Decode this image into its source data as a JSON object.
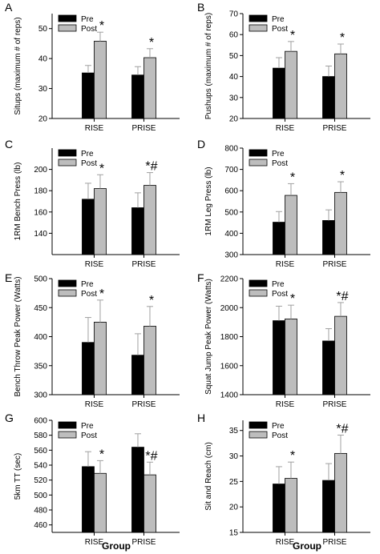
{
  "xlabel": "Group",
  "legend": [
    "Pre",
    "Post"
  ],
  "colors": {
    "pre": "#000000",
    "post": "#bdbdbd",
    "error": "#a0a0a0"
  },
  "chart_data": [
    {
      "panel": "A",
      "type": "bar",
      "ylabel": "Situps (maximum # of reps)",
      "ylim": [
        20,
        55
      ],
      "yticks": [
        20,
        30,
        40,
        50
      ],
      "categories": [
        "RISE",
        "PRISE"
      ],
      "series": [
        {
          "name": "Pre",
          "values": [
            35.2,
            34.5
          ],
          "errors": [
            2.5,
            2.8
          ]
        },
        {
          "name": "Post",
          "values": [
            45.8,
            40.3
          ],
          "errors": [
            3.0,
            3.0
          ]
        }
      ],
      "annotations": [
        "*",
        "*"
      ],
      "legend_position": "top-left",
      "grid": false
    },
    {
      "panel": "B",
      "type": "bar",
      "ylabel": "Pushups (maximum # of reps)",
      "ylim": [
        20,
        70
      ],
      "yticks": [
        20,
        30,
        40,
        50,
        60,
        70
      ],
      "categories": [
        "RISE",
        "PRISE"
      ],
      "series": [
        {
          "name": "Pre",
          "values": [
            44.0,
            40.0
          ],
          "errors": [
            5.0,
            5.0
          ]
        },
        {
          "name": "Post",
          "values": [
            52.0,
            50.8
          ],
          "errors": [
            4.7,
            4.7
          ]
        }
      ],
      "annotations": [
        "*",
        "*"
      ],
      "legend_position": "top-left",
      "grid": false
    },
    {
      "panel": "C",
      "type": "bar",
      "ylabel": "1RM Bench Press (lb)",
      "ylim": [
        120,
        220
      ],
      "yticks": [
        140,
        160,
        180,
        200
      ],
      "categories": [
        "RISE",
        "PRISE"
      ],
      "series": [
        {
          "name": "Pre",
          "values": [
            172,
            164
          ],
          "errors": [
            15,
            14
          ]
        },
        {
          "name": "Post",
          "values": [
            182,
            185
          ],
          "errors": [
            13,
            12
          ]
        }
      ],
      "annotations": [
        "*",
        "*#"
      ],
      "legend_position": "top-left",
      "grid": false
    },
    {
      "panel": "D",
      "type": "bar",
      "ylabel": "1RM Leg Press (lb)",
      "ylim": [
        300,
        800
      ],
      "yticks": [
        300,
        400,
        500,
        600,
        700,
        800
      ],
      "categories": [
        "RISE",
        "PRISE"
      ],
      "series": [
        {
          "name": "Pre",
          "values": [
            452,
            460
          ],
          "errors": [
            50,
            50
          ]
        },
        {
          "name": "Post",
          "values": [
            578,
            592
          ],
          "errors": [
            55,
            50
          ]
        }
      ],
      "annotations": [
        "*",
        "*"
      ],
      "legend_position": "top-left",
      "grid": false
    },
    {
      "panel": "E",
      "type": "bar",
      "ylabel": "Bench Throw Peak Power (Watts)",
      "ylim": [
        300,
        500
      ],
      "yticks": [
        300,
        350,
        400,
        450,
        500
      ],
      "categories": [
        "RISE",
        "PRISE"
      ],
      "series": [
        {
          "name": "Pre",
          "values": [
            390,
            368
          ],
          "errors": [
            43,
            37
          ]
        },
        {
          "name": "Post",
          "values": [
            425,
            418
          ],
          "errors": [
            38,
            34
          ]
        }
      ],
      "annotations": [
        "*",
        "*"
      ],
      "legend_position": "top-left",
      "grid": false
    },
    {
      "panel": "F",
      "type": "bar",
      "ylabel": "Squat Jump Peak Power (Watts)",
      "ylim": [
        1400,
        2200
      ],
      "yticks": [
        1400,
        1600,
        1800,
        2000,
        2200
      ],
      "categories": [
        "RISE",
        "PRISE"
      ],
      "series": [
        {
          "name": "Pre",
          "values": [
            1910,
            1770
          ],
          "errors": [
            100,
            85
          ]
        },
        {
          "name": "Post",
          "values": [
            1922,
            1940
          ],
          "errors": [
            95,
            95
          ]
        }
      ],
      "annotations": [
        "*",
        "*#"
      ],
      "legend_position": "top-left",
      "grid": false
    },
    {
      "panel": "G",
      "type": "bar",
      "ylabel": "5km TT (sec)",
      "ylim": [
        450,
        600
      ],
      "yticks": [
        460,
        480,
        500,
        520,
        540,
        560,
        580,
        600
      ],
      "categories": [
        "RISE",
        "PRISE"
      ],
      "series": [
        {
          "name": "Pre",
          "values": [
            538,
            564
          ],
          "errors": [
            20,
            18
          ]
        },
        {
          "name": "Post",
          "values": [
            529,
            527
          ],
          "errors": [
            17,
            17
          ]
        }
      ],
      "annotations": [
        "*",
        "*#"
      ],
      "legend_position": "top-left",
      "grid": false
    },
    {
      "panel": "H",
      "type": "bar",
      "ylabel": "Sit and Reach (cm)",
      "ylim": [
        15,
        37
      ],
      "yticks": [
        15,
        20,
        25,
        30,
        35
      ],
      "categories": [
        "RISE",
        "PRISE"
      ],
      "series": [
        {
          "name": "Pre",
          "values": [
            24.5,
            25.2
          ],
          "errors": [
            3.4,
            3.3
          ]
        },
        {
          "name": "Post",
          "values": [
            25.6,
            30.5
          ],
          "errors": [
            3.2,
            3.6
          ]
        }
      ],
      "annotations": [
        "*",
        "*#"
      ],
      "legend_position": "top-left",
      "grid": false
    }
  ]
}
